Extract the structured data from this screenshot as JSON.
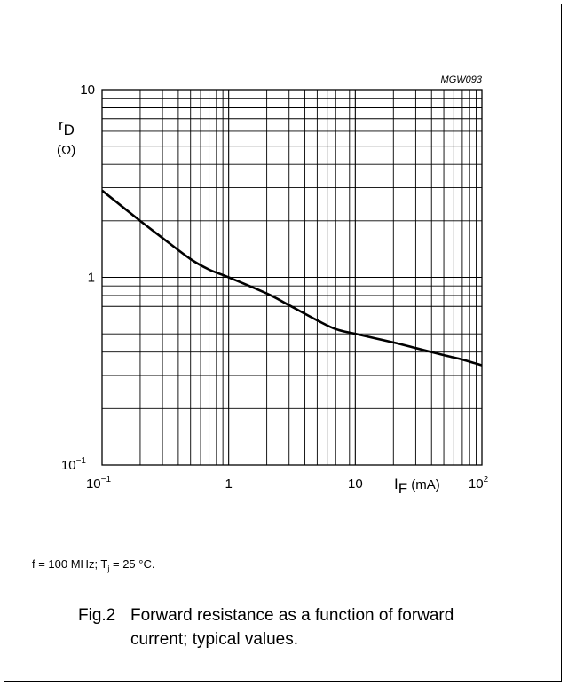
{
  "chart_data": {
    "type": "line",
    "code": "MGW093",
    "x_scale": "log",
    "y_scale": "log",
    "xlim": [
      0.1,
      100
    ],
    "ylim": [
      0.1,
      10
    ],
    "grid": true,
    "x_ticks": [
      {
        "value": 0.1,
        "base": "10",
        "exp": "−1"
      },
      {
        "value": 1,
        "base": "1",
        "exp": ""
      },
      {
        "value": 10,
        "base": "10",
        "exp": ""
      },
      {
        "value": 100,
        "base": "10",
        "exp": "2"
      }
    ],
    "y_ticks": [
      {
        "value": 0.1,
        "base": "10",
        "exp": "−1"
      },
      {
        "value": 1,
        "base": "1",
        "exp": ""
      },
      {
        "value": 10,
        "base": "10",
        "exp": ""
      }
    ],
    "xlabel": {
      "symbol": "I",
      "subscript": "F",
      "unit": " (mA)"
    },
    "ylabel": {
      "symbol": "r",
      "subscript": "D",
      "unit": "(Ω)"
    },
    "series": [
      {
        "color": "#000000",
        "x": [
          0.1,
          0.2,
          0.3,
          0.5,
          0.7,
          1,
          2,
          3,
          5,
          7,
          10,
          20,
          30,
          50,
          70,
          100
        ],
        "y": [
          2.9,
          2.0,
          1.62,
          1.25,
          1.1,
          1.0,
          0.82,
          0.71,
          0.59,
          0.53,
          0.5,
          0.45,
          0.42,
          0.385,
          0.365,
          0.34
        ]
      }
    ]
  },
  "conditions": {
    "prefix": "f = 100 MHz; T",
    "sub": "j",
    "suffix": " = 25 °C."
  },
  "caption": {
    "figure": "Fig.2",
    "text": "Forward resistance as a function of forward current; typical values."
  }
}
